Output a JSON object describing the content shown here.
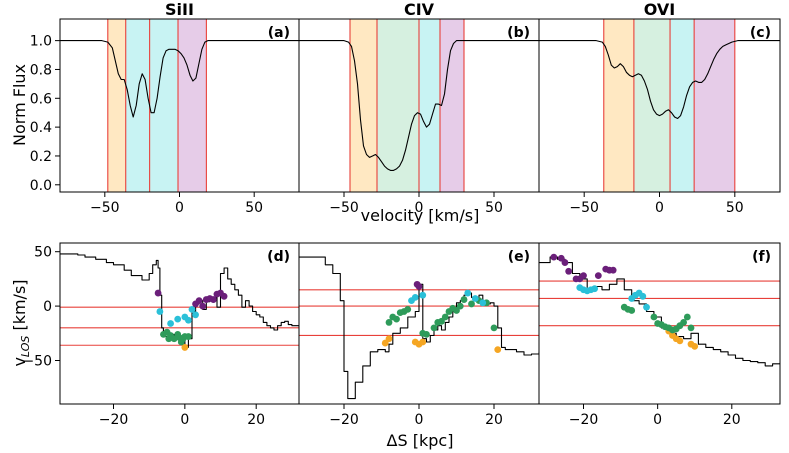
{
  "figure": {
    "top_xlabel": "velocity [km/s]",
    "top_ylabel": "Norm Flux",
    "bottom_xlabel": "ΔS [kpc]",
    "bottom_ylabel_main": "v",
    "bottom_ylabel_sub": "LOS",
    "bottom_ylabel_unit": " [km/s]"
  },
  "colors": {
    "orange": "#ffe8c2",
    "green": "#d6f0e0",
    "cyan": "#c8f3f3",
    "purple": "#e6cce8",
    "red_line": "#e8403a",
    "pt_orange": "#f5a623",
    "pt_green": "#2e9b5a",
    "pt_cyan": "#2bc0d8",
    "pt_purple": "#6b1f7a"
  },
  "chart_data": [
    {
      "id": "a",
      "type": "line",
      "title": "SiII",
      "label": "(a)",
      "xlim": [
        -80,
        80
      ],
      "ylim": [
        -0.05,
        1.15
      ],
      "xticks": [
        -50,
        0,
        50
      ],
      "yticks": [
        0.0,
        0.2,
        0.4,
        0.6,
        0.8,
        1.0
      ],
      "bands": [
        {
          "from": -48,
          "to": -36,
          "color": "orange"
        },
        {
          "from": -36,
          "to": -20,
          "color": "cyan"
        },
        {
          "from": -20,
          "to": -1,
          "color": "cyan"
        },
        {
          "from": -1,
          "to": 18,
          "color": "purple"
        }
      ],
      "vlines": [
        -48,
        -36,
        -20,
        -1,
        18
      ],
      "x": [
        -80,
        -52,
        -48,
        -45,
        -43,
        -41,
        -39,
        -37,
        -35,
        -33,
        -31,
        -29,
        -27,
        -25,
        -23,
        -21,
        -19,
        -17,
        -15,
        -13,
        -11,
        -9,
        -7,
        -5,
        -3,
        -1,
        1,
        3,
        5,
        7,
        9,
        11,
        13,
        15,
        17,
        19,
        21,
        25,
        80
      ],
      "y": [
        1.0,
        1.0,
        0.99,
        0.95,
        0.86,
        0.77,
        0.73,
        0.73,
        0.66,
        0.55,
        0.47,
        0.55,
        0.7,
        0.77,
        0.73,
        0.6,
        0.5,
        0.5,
        0.6,
        0.75,
        0.88,
        0.93,
        0.94,
        0.94,
        0.94,
        0.93,
        0.91,
        0.88,
        0.83,
        0.76,
        0.72,
        0.74,
        0.84,
        0.94,
        0.99,
        1.0,
        1.0,
        1.0,
        1.0
      ]
    },
    {
      "id": "b",
      "type": "line",
      "title": "CIV",
      "label": "(b)",
      "xlim": [
        -80,
        80
      ],
      "ylim": [
        -0.05,
        1.15
      ],
      "xticks": [
        -50,
        0,
        50
      ],
      "yticks": [
        0.0,
        0.2,
        0.4,
        0.6,
        0.8,
        1.0
      ],
      "bands": [
        {
          "from": -46,
          "to": -28,
          "color": "orange"
        },
        {
          "from": -28,
          "to": 0,
          "color": "green"
        },
        {
          "from": 0,
          "to": 14,
          "color": "cyan"
        },
        {
          "from": 14,
          "to": 30,
          "color": "purple"
        }
      ],
      "vlines": [
        -46,
        -28,
        0,
        14,
        30
      ],
      "x": [
        -80,
        -50,
        -47,
        -45,
        -43,
        -41,
        -39,
        -37,
        -35,
        -33,
        -31,
        -29,
        -27,
        -25,
        -23,
        -21,
        -19,
        -17,
        -15,
        -13,
        -11,
        -9,
        -7,
        -5,
        -3,
        -1,
        1,
        3,
        5,
        7,
        9,
        11,
        13,
        15,
        17,
        19,
        21,
        23,
        25,
        27,
        29,
        31,
        35,
        80
      ],
      "y": [
        1.0,
        1.0,
        0.99,
        0.96,
        0.86,
        0.7,
        0.45,
        0.27,
        0.21,
        0.19,
        0.2,
        0.21,
        0.19,
        0.16,
        0.13,
        0.11,
        0.1,
        0.1,
        0.11,
        0.13,
        0.17,
        0.24,
        0.33,
        0.42,
        0.48,
        0.5,
        0.49,
        0.44,
        0.4,
        0.42,
        0.49,
        0.56,
        0.56,
        0.55,
        0.63,
        0.8,
        0.93,
        0.98,
        1.0,
        1.0,
        1.0,
        1.0,
        1.0,
        1.0
      ]
    },
    {
      "id": "c",
      "type": "line",
      "title": "OVI",
      "label": "(c)",
      "xlim": [
        -80,
        80
      ],
      "ylim": [
        -0.05,
        1.15
      ],
      "xticks": [
        -50,
        0,
        50
      ],
      "yticks": [
        0.0,
        0.2,
        0.4,
        0.6,
        0.8,
        1.0
      ],
      "bands": [
        {
          "from": -37,
          "to": -17,
          "color": "orange"
        },
        {
          "from": -17,
          "to": 7,
          "color": "green"
        },
        {
          "from": 7,
          "to": 23,
          "color": "cyan"
        },
        {
          "from": 23,
          "to": 50,
          "color": "purple"
        }
      ],
      "vlines": [
        -37,
        -17,
        7,
        23,
        50
      ],
      "x": [
        -80,
        -42,
        -38,
        -36,
        -34,
        -32,
        -30,
        -28,
        -26,
        -24,
        -22,
        -20,
        -18,
        -16,
        -14,
        -12,
        -10,
        -8,
        -6,
        -4,
        -2,
        0,
        2,
        4,
        6,
        8,
        10,
        12,
        14,
        16,
        18,
        20,
        22,
        24,
        26,
        28,
        30,
        32,
        34,
        36,
        38,
        40,
        42,
        44,
        46,
        48,
        52,
        80
      ],
      "y": [
        1.0,
        1.0,
        0.99,
        0.96,
        0.9,
        0.83,
        0.81,
        0.82,
        0.84,
        0.82,
        0.78,
        0.76,
        0.75,
        0.76,
        0.77,
        0.76,
        0.72,
        0.66,
        0.58,
        0.52,
        0.49,
        0.48,
        0.49,
        0.51,
        0.52,
        0.5,
        0.47,
        0.46,
        0.48,
        0.54,
        0.62,
        0.68,
        0.71,
        0.72,
        0.71,
        0.71,
        0.73,
        0.77,
        0.82,
        0.87,
        0.91,
        0.94,
        0.96,
        0.97,
        0.98,
        0.99,
        1.0,
        1.0
      ]
    },
    {
      "id": "d",
      "type": "line",
      "label": "(d)",
      "xlim": [
        -35,
        32
      ],
      "ylim": [
        -90,
        58
      ],
      "xticks": [
        -20,
        0,
        20
      ],
      "yticks": [
        -50,
        0,
        50
      ],
      "hlines": [
        -1,
        -20,
        -36
      ],
      "x": [
        -35,
        -30,
        -28,
        -25,
        -22,
        -20,
        -17,
        -15,
        -12,
        -10,
        -9,
        -8,
        -7.5,
        -7,
        -6.5,
        -6,
        -5,
        -4,
        -3,
        -2,
        -1,
        0,
        1,
        2,
        3,
        4,
        5,
        6,
        7,
        8,
        9,
        10,
        11,
        12,
        13,
        14,
        15,
        16,
        17,
        18,
        19,
        20,
        21,
        22,
        23,
        24,
        25,
        26,
        27,
        28,
        29,
        30,
        32
      ],
      "y": [
        48,
        47,
        45,
        43,
        40,
        38,
        33,
        28,
        24,
        30,
        38,
        42,
        35,
        10,
        -20,
        -28,
        -30,
        -26,
        -30,
        -28,
        -32,
        -38,
        -30,
        -5,
        2,
        5,
        -3,
        4,
        6,
        8,
        -1,
        30,
        35,
        25,
        20,
        15,
        10,
        -1,
        5,
        0,
        -5,
        -8,
        -10,
        -15,
        -18,
        -20,
        -22,
        -18,
        -15,
        -14,
        -17,
        -18,
        -19
      ],
      "points": {
        "purple": [
          [
            -7.5,
            12
          ],
          [
            3,
            2
          ],
          [
            4,
            5
          ],
          [
            5,
            0
          ],
          [
            6,
            6
          ],
          [
            7,
            7
          ],
          [
            8,
            6
          ],
          [
            9,
            11
          ],
          [
            10,
            12
          ],
          [
            11,
            9
          ]
        ],
        "cyan": [
          [
            -7,
            -5
          ],
          [
            -4,
            -16
          ],
          [
            -2,
            -12
          ],
          [
            0,
            -10
          ],
          [
            1,
            -13
          ],
          [
            2,
            -3
          ],
          [
            3,
            -8
          ]
        ],
        "green": [
          [
            -6,
            -26
          ],
          [
            -5,
            -24
          ],
          [
            -4.5,
            -30
          ],
          [
            -4,
            -27
          ],
          [
            -3,
            -30
          ],
          [
            -2,
            -26
          ],
          [
            -1.5,
            -29
          ],
          [
            -1,
            -33
          ],
          [
            -0.5,
            -30
          ],
          [
            0,
            -28
          ],
          [
            1,
            -28
          ]
        ],
        "orange": [
          [
            0,
            -38
          ]
        ]
      }
    },
    {
      "id": "e",
      "type": "line",
      "label": "(e)",
      "xlim": [
        -32,
        32
      ],
      "ylim": [
        -90,
        58
      ],
      "xticks": [
        -20,
        0,
        20
      ],
      "yticks": [
        -50,
        0,
        50
      ],
      "hlines": [
        15,
        0,
        -27
      ],
      "x": [
        -32,
        -25,
        -23,
        -21,
        -20,
        -19,
        -17,
        -15,
        -13,
        -11,
        -9,
        -8,
        -7,
        -5,
        -3,
        -1,
        0,
        1,
        2,
        3,
        4,
        5,
        6,
        7,
        8,
        9,
        10,
        11,
        12,
        13,
        14,
        15,
        16,
        17,
        18,
        19,
        20,
        21,
        22,
        23,
        24,
        26,
        28,
        30,
        32
      ],
      "y": [
        45,
        38,
        30,
        5,
        -60,
        -85,
        -70,
        -55,
        -42,
        -40,
        -42,
        -35,
        -25,
        -20,
        -10,
        -5,
        20,
        -30,
        -33,
        -27,
        -22,
        -18,
        -22,
        -15,
        -10,
        -5,
        3,
        5,
        10,
        12,
        8,
        5,
        10,
        5,
        2,
        3,
        0,
        -20,
        -38,
        -40,
        -40,
        -42,
        -45,
        -44,
        -42
      ],
      "points": {
        "purple": [
          [
            -0.5,
            20
          ],
          [
            0,
            18
          ]
        ],
        "cyan": [
          [
            -2,
            5
          ],
          [
            -1,
            8
          ],
          [
            1,
            10
          ],
          [
            13,
            12
          ],
          [
            15,
            7
          ],
          [
            17,
            3
          ]
        ],
        "green": [
          [
            -8,
            -15
          ],
          [
            -7,
            -10
          ],
          [
            -6,
            -12
          ],
          [
            -5,
            -6
          ],
          [
            -4,
            -5
          ],
          [
            -3,
            -3
          ],
          [
            1,
            -25
          ],
          [
            2,
            -26
          ],
          [
            4,
            -20
          ],
          [
            5,
            -15
          ],
          [
            6,
            -14
          ],
          [
            7,
            -10
          ],
          [
            8,
            -5
          ],
          [
            9,
            -2
          ],
          [
            10,
            -4
          ],
          [
            11,
            0
          ],
          [
            12,
            6
          ],
          [
            14,
            2
          ],
          [
            16,
            5
          ],
          [
            18,
            3
          ],
          [
            20,
            -20
          ]
        ],
        "orange": [
          [
            -9,
            -34
          ],
          [
            -8,
            -30
          ],
          [
            -1,
            -33
          ],
          [
            0,
            -35
          ],
          [
            1,
            -33
          ],
          [
            21,
            -40
          ]
        ]
      }
    },
    {
      "id": "f",
      "type": "line",
      "label": "(f)",
      "xlim": [
        -32,
        33
      ],
      "ylim": [
        -90,
        58
      ],
      "xticks": [
        -20,
        0,
        20
      ],
      "yticks": [
        -50,
        0,
        50
      ],
      "hlines": [
        23,
        7,
        -18
      ],
      "x": [
        -32,
        -29,
        -27,
        -25,
        -23,
        -21,
        -19,
        -17,
        -15,
        -13,
        -11,
        -9,
        -7,
        -5,
        -3,
        -1,
        1,
        3,
        5,
        7,
        9,
        11,
        13,
        15,
        17,
        19,
        21,
        23,
        25,
        27,
        29,
        31,
        33
      ],
      "y": [
        40,
        45,
        43,
        40,
        30,
        25,
        15,
        18,
        15,
        20,
        25,
        15,
        5,
        2,
        -5,
        -10,
        -20,
        -25,
        -28,
        -30,
        -25,
        -35,
        -38,
        -40,
        -42,
        -45,
        -48,
        -50,
        -51,
        -52,
        -55,
        -53,
        -52
      ],
      "points": {
        "purple": [
          [
            -28,
            45
          ],
          [
            -26,
            44
          ],
          [
            -25,
            40
          ],
          [
            -24,
            32
          ],
          [
            -22,
            25
          ],
          [
            -21,
            25
          ],
          [
            -20,
            28
          ],
          [
            -16,
            28
          ],
          [
            -14,
            34
          ],
          [
            -13,
            33
          ],
          [
            -12,
            33
          ]
        ],
        "cyan": [
          [
            -21,
            17
          ],
          [
            -20,
            15
          ],
          [
            -19,
            14
          ],
          [
            -18,
            15
          ],
          [
            -17,
            16
          ],
          [
            -7,
            7
          ],
          [
            -6,
            10
          ],
          [
            -5,
            12
          ],
          [
            -4,
            9
          ],
          [
            -3,
            -1
          ]
        ],
        "green": [
          [
            -9,
            -1
          ],
          [
            -8,
            -3
          ],
          [
            -7,
            -4
          ],
          [
            -1,
            -10
          ],
          [
            0,
            -16
          ],
          [
            1,
            -17
          ],
          [
            2,
            -19
          ],
          [
            3,
            -20
          ],
          [
            4,
            -22
          ],
          [
            5,
            -21
          ],
          [
            6,
            -18
          ],
          [
            7,
            -15
          ],
          [
            8,
            -10
          ],
          [
            9,
            -20
          ]
        ],
        "orange": [
          [
            3,
            -23
          ],
          [
            4,
            -27
          ],
          [
            5,
            -30
          ],
          [
            6,
            -32
          ],
          [
            9,
            -35
          ],
          [
            10,
            -37
          ]
        ]
      }
    }
  ]
}
